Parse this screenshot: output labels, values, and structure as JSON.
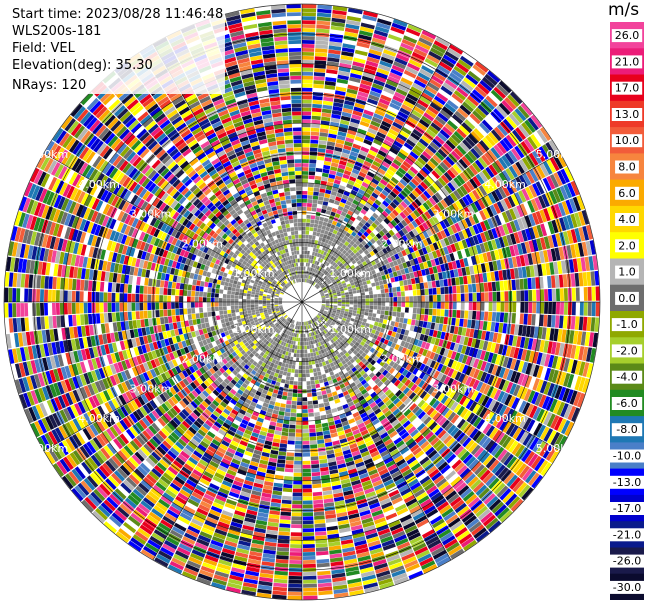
{
  "header": {
    "start_time": "Start time: 2023/08/28 11:46:48",
    "instrument": "WLS200s-181",
    "field": "Field: VEL",
    "elevation": "Elevation(deg): 35.30",
    "nrays": "NRays: 120"
  },
  "colorbar": {
    "unit": "m/s",
    "levels": [
      {
        "label": "26.0",
        "color": "#f2439b"
      },
      {
        "label": "21.0",
        "color": "#ec1c78"
      },
      {
        "label": "17.0",
        "color": "#e8001c"
      },
      {
        "label": "13.0",
        "color": "#ee3a28"
      },
      {
        "label": "10.0",
        "color": "#f25c3a"
      },
      {
        "label": "8.0",
        "color": "#f7853e"
      },
      {
        "label": "6.0",
        "color": "#fbaa00"
      },
      {
        "label": "4.0",
        "color": "#ffd800"
      },
      {
        "label": "2.0",
        "color": "#ffff00"
      },
      {
        "label": "1.0",
        "color": "#b5b5b5"
      },
      {
        "label": "0.0",
        "color": "#6e6e6e"
      },
      {
        "label": "-1.0",
        "color": "#8fa800"
      },
      {
        "label": "-2.0",
        "color": "#a6cf2c"
      },
      {
        "label": "-4.0",
        "color": "#5b8a18"
      },
      {
        "label": "-6.0",
        "color": "#228b22"
      },
      {
        "label": "-8.0",
        "color": "#1e78b4"
      },
      {
        "label": "-10.0",
        "color": "#4a7fc8"
      },
      {
        "label": "-13.0",
        "color": "#0000ff"
      },
      {
        "label": "-17.0",
        "color": "#0000cd"
      },
      {
        "label": "-21.0",
        "color": "#0a1a8c"
      },
      {
        "label": "-26.0",
        "color": "#1a1a4a"
      },
      {
        "label": "-30.0",
        "color": "#0b0b2e"
      }
    ]
  },
  "range_rings": {
    "labels": [
      "1.00km",
      "2.00km",
      "3.00km",
      "4.00km",
      "5.00km"
    ]
  },
  "chart_data": {
    "type": "heatmap",
    "title": "",
    "field": "VEL",
    "units": "m/s",
    "rays": 120,
    "max_range_km": 5.0
  }
}
